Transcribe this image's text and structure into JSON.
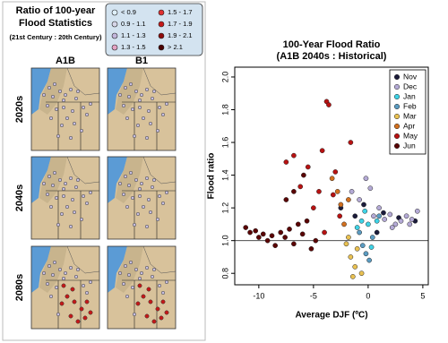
{
  "map_panel": {
    "title": [
      "Ratio of 100-year",
      "Flood Statistics",
      "(21st Century : 20th Century)"
    ],
    "legend": [
      {
        "label": "< 0.9",
        "color": "#dff0fb"
      },
      {
        "label": "0.9 - 1.1",
        "color": "#d6d6e8"
      },
      {
        "label": "1.1 - 1.3",
        "color": "#c3b6dc"
      },
      {
        "label": "1.3 - 1.5",
        "color": "#e4a3c4"
      },
      {
        "label": "1.5 - 1.7",
        "color": "#e03030"
      },
      {
        "label": "1.7 - 1.9",
        "color": "#c41818"
      },
      {
        "label": "1.9 - 2.1",
        "color": "#8e0a0a"
      },
      {
        "label": "> 2.1",
        "color": "#4a0000"
      }
    ],
    "columns": [
      "A1B",
      "B1"
    ],
    "rows": [
      "2020s",
      "2040s",
      "2080s"
    ]
  },
  "chart_data": {
    "type": "scatter",
    "title": "100-Year Flood Ratio",
    "subtitle": "(A1B 2040s : Historical)",
    "x_label": "Average DJF (ºC)",
    "y_label": "Flood ratio",
    "xlim": [
      -12.2,
      5.5
    ],
    "ylim": [
      0.73,
      2.06
    ],
    "xticks": [
      -10,
      -5,
      0,
      5
    ],
    "yticks": [
      0.8,
      {
        "value": 1,
        "label": "1.0"
      },
      1.2,
      1.4,
      1.6,
      1.8,
      {
        "value": 2,
        "label": "2.0"
      }
    ],
    "reference_line": 1,
    "legend_position": "top-right",
    "series": [
      {
        "name": "Nov",
        "color": "#1b1b3a",
        "x": [
          -2.5,
          -1.2,
          -0.4,
          1.4,
          2.8,
          4.3,
          0.8
        ],
        "values": [
          1.2,
          1.15,
          1.22,
          1.17,
          1.14,
          1.12,
          1.05
        ]
      },
      {
        "name": "Dec",
        "color": "#b4aad6",
        "x": [
          0.5,
          1,
          1.5,
          2,
          2.5,
          3,
          3.5,
          4,
          4.5,
          -1.5,
          -0.8,
          0.2,
          -0.2,
          2.2,
          3.8
        ],
        "values": [
          1.15,
          1.2,
          1.13,
          1.16,
          1.1,
          1.12,
          1.15,
          1.13,
          1.18,
          1.3,
          1.25,
          1.32,
          1.38,
          1.08,
          1.1
        ]
      },
      {
        "name": "Jan",
        "color": "#3fd3e6",
        "x": [
          -0.6,
          -0.3,
          0,
          0.3,
          -1,
          0.8
        ],
        "values": [
          1.12,
          1.18,
          1.1,
          0.96,
          1.08,
          1.12
        ]
      },
      {
        "name": "Feb",
        "color": "#5b9cc2",
        "x": [
          -0.8,
          -0.5,
          -0.2,
          0.4,
          0.1,
          1
        ],
        "values": [
          1.05,
          0.97,
          0.92,
          1.02,
          0.88,
          1.15
        ]
      },
      {
        "name": "Mar",
        "color": "#e9c152",
        "x": [
          -2,
          -1.6,
          -1.2,
          -1.8,
          -1,
          -0.6,
          -1.4
        ],
        "values": [
          0.98,
          0.9,
          0.84,
          1.02,
          0.95,
          0.8,
          0.78
        ]
      },
      {
        "name": "Apr",
        "color": "#d2701f",
        "x": [
          -3.3,
          -2.8,
          -2.5,
          -2.2,
          -1.8
        ],
        "values": [
          1.38,
          1.3,
          1.22,
          1.1,
          1.25
        ]
      },
      {
        "name": "May",
        "color": "#b81212",
        "x": [
          -7.5,
          -6.8,
          -6.2,
          -5.5,
          -5,
          -4.5,
          -4.2,
          -3.8,
          -3.6,
          -3.2,
          -3,
          -4,
          -2.6,
          -1.6
        ],
        "values": [
          1.48,
          1.52,
          1.33,
          1.45,
          1.2,
          1.3,
          1.55,
          1.85,
          1.83,
          1.28,
          1.42,
          1.05,
          1.15,
          1.6
        ]
      },
      {
        "name": "Jun",
        "color": "#5a0404",
        "x": [
          -11.2,
          -10.8,
          -10.3,
          -10,
          -9.6,
          -9.2,
          -8.8,
          -8.5,
          -8,
          -7.6,
          -7.2,
          -6.8,
          -6.4,
          -6,
          -5.6,
          -5.2,
          -4.8,
          -6.8,
          -5.9,
          -7.5
        ],
        "values": [
          1.08,
          1.05,
          1.06,
          1.02,
          1.04,
          1,
          1.03,
          0.97,
          1.05,
          1.02,
          1.07,
          0.98,
          1.1,
          1.04,
          1.12,
          0.95,
          1,
          1.3,
          1.4,
          1.25
        ]
      }
    ]
  }
}
